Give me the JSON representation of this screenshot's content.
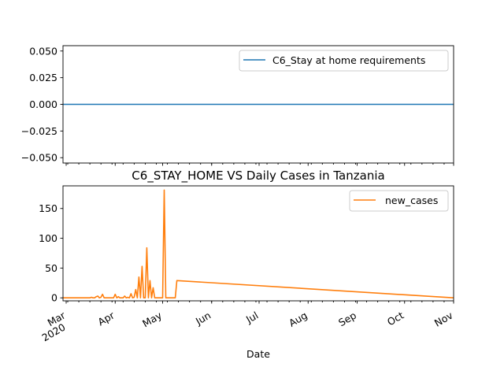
{
  "colors": {
    "series1": "#1f77b4",
    "series2": "#ff7f0e"
  },
  "chart_data": [
    {
      "type": "line",
      "title": "",
      "legend": {
        "placement": "top-right"
      },
      "ylim": [
        -0.055,
        0.055
      ],
      "yticks": [
        0.05,
        0.025,
        0.0,
        -0.025,
        -0.05
      ],
      "ytick_labels": [
        "0.050",
        "0.025",
        "0.000",
        "−0.025",
        "−0.050"
      ],
      "xlim": [
        "2020-02-28",
        "2020-11-01"
      ],
      "x_tick_labels_shown": false,
      "series": [
        {
          "name": "C6_Stay at home requirements",
          "color": "#1f77b4",
          "x": [
            "2020-02-28",
            "2020-11-01"
          ],
          "values": [
            0,
            0
          ]
        }
      ]
    },
    {
      "type": "line",
      "title": "C6_STAY_HOME VS Daily Cases in Tanzania",
      "xlabel": "Date",
      "legend": {
        "placement": "top-right"
      },
      "ylim": [
        -5,
        188
      ],
      "yticks": [
        0,
        50,
        100,
        150
      ],
      "ytick_labels": [
        "0",
        "50",
        "100",
        "150"
      ],
      "xlim": [
        "2020-02-28",
        "2020-11-01"
      ],
      "xticks": [
        {
          "date": "2020-03-01",
          "label": "Mar",
          "sublabel": "2020"
        },
        {
          "date": "2020-04-01",
          "label": "Apr"
        },
        {
          "date": "2020-05-01",
          "label": "May"
        },
        {
          "date": "2020-06-01",
          "label": "Jun"
        },
        {
          "date": "2020-07-01",
          "label": "Jul"
        },
        {
          "date": "2020-08-01",
          "label": "Aug"
        },
        {
          "date": "2020-09-01",
          "label": "Sep"
        },
        {
          "date": "2020-10-01",
          "label": "Oct"
        },
        {
          "date": "2020-11-01",
          "label": "Nov"
        }
      ],
      "series": [
        {
          "name": "new_cases",
          "color": "#ff7f0e",
          "x": [
            "2020-02-28",
            "2020-03-15",
            "2020-03-16",
            "2020-03-17",
            "2020-03-18",
            "2020-03-19",
            "2020-03-20",
            "2020-03-21",
            "2020-03-22",
            "2020-03-23",
            "2020-03-24",
            "2020-03-25",
            "2020-03-26",
            "2020-03-27",
            "2020-03-28",
            "2020-03-29",
            "2020-03-30",
            "2020-03-31",
            "2020-04-01",
            "2020-04-02",
            "2020-04-03",
            "2020-04-04",
            "2020-04-05",
            "2020-04-06",
            "2020-04-07",
            "2020-04-08",
            "2020-04-09",
            "2020-04-10",
            "2020-04-11",
            "2020-04-12",
            "2020-04-13",
            "2020-04-14",
            "2020-04-15",
            "2020-04-16",
            "2020-04-17",
            "2020-04-18",
            "2020-04-19",
            "2020-04-20",
            "2020-04-21",
            "2020-04-22",
            "2020-04-23",
            "2020-04-24",
            "2020-04-25",
            "2020-04-26",
            "2020-04-27",
            "2020-04-28",
            "2020-04-29",
            "2020-04-30",
            "2020-05-01",
            "2020-05-02",
            "2020-05-03",
            "2020-05-04",
            "2020-05-05",
            "2020-05-06",
            "2020-05-07",
            "2020-05-08",
            "2020-05-09",
            "2020-05-10",
            "2020-11-01"
          ],
          "values": [
            0,
            0,
            0,
            1,
            0,
            0,
            2,
            3,
            0,
            1,
            6,
            0,
            0,
            0,
            0,
            0,
            0,
            0,
            6,
            0,
            2,
            0,
            0,
            0,
            3,
            0,
            1,
            0,
            7,
            0,
            1,
            14,
            0,
            35,
            0,
            53,
            0,
            0,
            84,
            0,
            29,
            0,
            17,
            0,
            0,
            0,
            0,
            0,
            0,
            181,
            0,
            0,
            0,
            0,
            0,
            0,
            0,
            29,
            0
          ]
        }
      ]
    }
  ]
}
